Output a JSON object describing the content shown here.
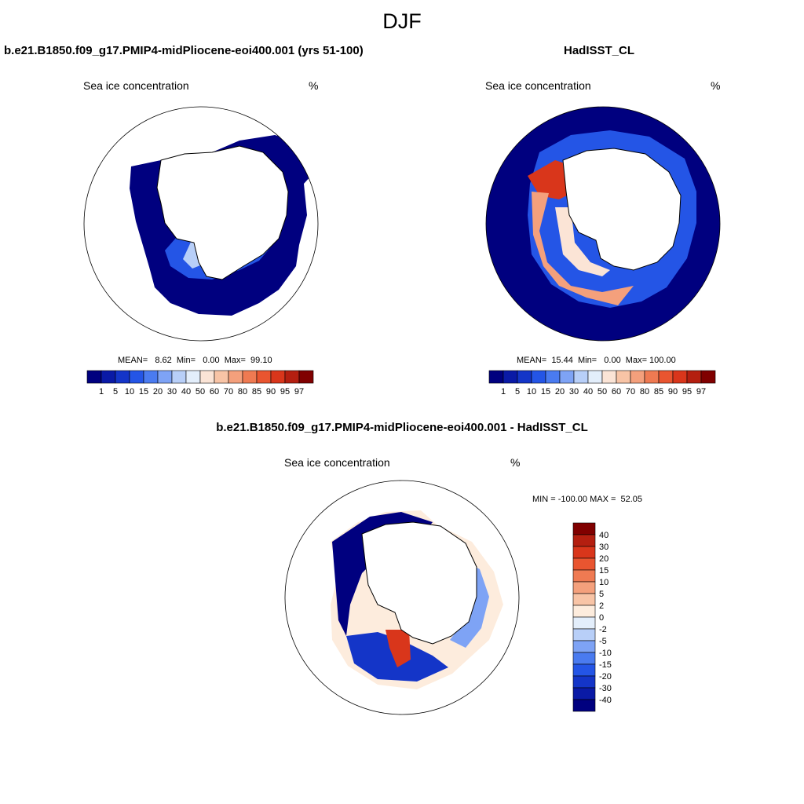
{
  "season": "DJF",
  "colors": {
    "seq": [
      "#00007f",
      "#0a1aa6",
      "#1435c8",
      "#2455e6",
      "#4a7bf0",
      "#7ea3f5",
      "#b8cff8",
      "#e3eefb",
      "#fbe4d6",
      "#f8c4a6",
      "#f4a07c",
      "#ef7a52",
      "#e95530",
      "#d9361b",
      "#b41f10",
      "#800000"
    ],
    "diff": [
      "#00007f",
      "#0a1aa6",
      "#1435c8",
      "#2455e6",
      "#4a7bf0",
      "#7ea3f5",
      "#b8cff8",
      "#e3eefb",
      "#fdecdd",
      "#f8c4a6",
      "#f4a07c",
      "#ef7a52",
      "#e95530",
      "#d9361b",
      "#b41f10",
      "#800000"
    ]
  },
  "panels": [
    {
      "title": "b.e21.B1850.f09_g17.PMIP4-midPliocene-eoi400.001 (yrs 51-100)",
      "subtitle_left": "Sea ice concentration",
      "subtitle_right": "%",
      "stats": "MEAN=   8.62  Min=   0.00  Max=  99.10",
      "colorbar_labels": [
        "1",
        "5",
        "10",
        "15",
        "20",
        "30",
        "40",
        "50",
        "60",
        "70",
        "80",
        "85",
        "90",
        "95",
        "97"
      ]
    },
    {
      "title": "HadISST_CL",
      "subtitle_left": "Sea ice concentration",
      "subtitle_right": "%",
      "stats": "MEAN=  15.44  Min=   0.00  Max= 100.00",
      "colorbar_labels": [
        "1",
        "5",
        "10",
        "15",
        "20",
        "30",
        "40",
        "50",
        "60",
        "70",
        "80",
        "85",
        "90",
        "95",
        "97"
      ]
    },
    {
      "title": "b.e21.B1850.f09_g17.PMIP4-midPliocene-eoi400.001 - HadISST_CL",
      "subtitle_left": "Sea ice concentration",
      "subtitle_right": "%",
      "stats": "MIN = -100.00 MAX =  52.05",
      "colorbar_labels": [
        "40",
        "30",
        "20",
        "15",
        "10",
        "5",
        "2",
        "0",
        "-2",
        "-5",
        "-10",
        "-15",
        "-20",
        "-30",
        "-40"
      ]
    }
  ],
  "chart_data": [
    {
      "type": "heatmap",
      "projection": "south-polar-stereographic",
      "title": "b.e21.B1850.f09_g17.PMIP4-midPliocene-eoi400.001 (yrs 51-100)",
      "variable": "Sea ice concentration",
      "units": "%",
      "mean": 8.62,
      "min": 0.0,
      "max": 99.1,
      "contour_levels": [
        1,
        5,
        10,
        15,
        20,
        30,
        40,
        50,
        60,
        70,
        80,
        85,
        90,
        95,
        97
      ]
    },
    {
      "type": "heatmap",
      "projection": "south-polar-stereographic",
      "title": "HadISST_CL",
      "variable": "Sea ice concentration",
      "units": "%",
      "mean": 15.44,
      "min": 0.0,
      "max": 100.0,
      "contour_levels": [
        1,
        5,
        10,
        15,
        20,
        30,
        40,
        50,
        60,
        70,
        80,
        85,
        90,
        95,
        97
      ]
    },
    {
      "type": "heatmap",
      "projection": "south-polar-stereographic",
      "title": "b.e21.B1850.f09_g17.PMIP4-midPliocene-eoi400.001 - HadISST_CL",
      "variable": "Sea ice concentration",
      "units": "%",
      "min": -100.0,
      "max": 52.05,
      "contour_levels": [
        -40,
        -30,
        -20,
        -15,
        -10,
        -5,
        -2,
        0,
        2,
        5,
        10,
        15,
        20,
        30,
        40
      ]
    }
  ]
}
